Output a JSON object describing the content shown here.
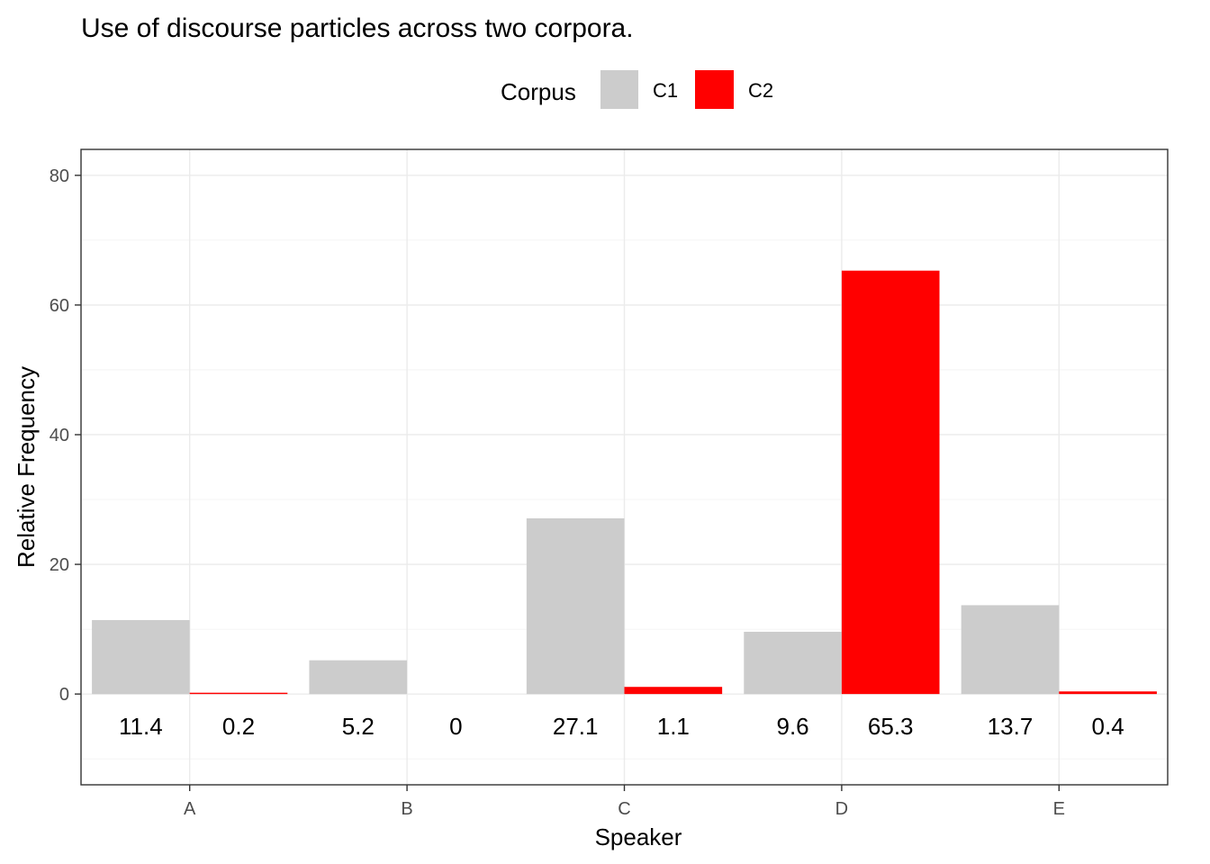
{
  "chart_data": {
    "type": "bar",
    "title": "Use of discourse particles across two corpora.",
    "xlabel": "Speaker",
    "ylabel": "Relative Frequency",
    "categories": [
      "A",
      "B",
      "C",
      "D",
      "E"
    ],
    "series": [
      {
        "name": "C1",
        "color": "#cccccc",
        "values": [
          11.4,
          5.2,
          27.1,
          9.6,
          13.7
        ]
      },
      {
        "name": "C2",
        "color": "#ff0000",
        "values": [
          0.2,
          0,
          1.1,
          65.3,
          0.4
        ]
      }
    ],
    "data_labels": [
      [
        "11.4",
        "5.2",
        "27.1",
        "9.6",
        "13.7"
      ],
      [
        "0.2",
        "0",
        "1.1",
        "65.3",
        "0.4"
      ]
    ],
    "legend": {
      "title": "Corpus",
      "position": "top"
    },
    "ylim": [
      -14,
      84
    ],
    "yticks": [
      0,
      20,
      40,
      60,
      80
    ],
    "ytick_labels": [
      "0",
      "20",
      "40",
      "60",
      "80"
    ],
    "label_y": -5,
    "grid": true
  }
}
